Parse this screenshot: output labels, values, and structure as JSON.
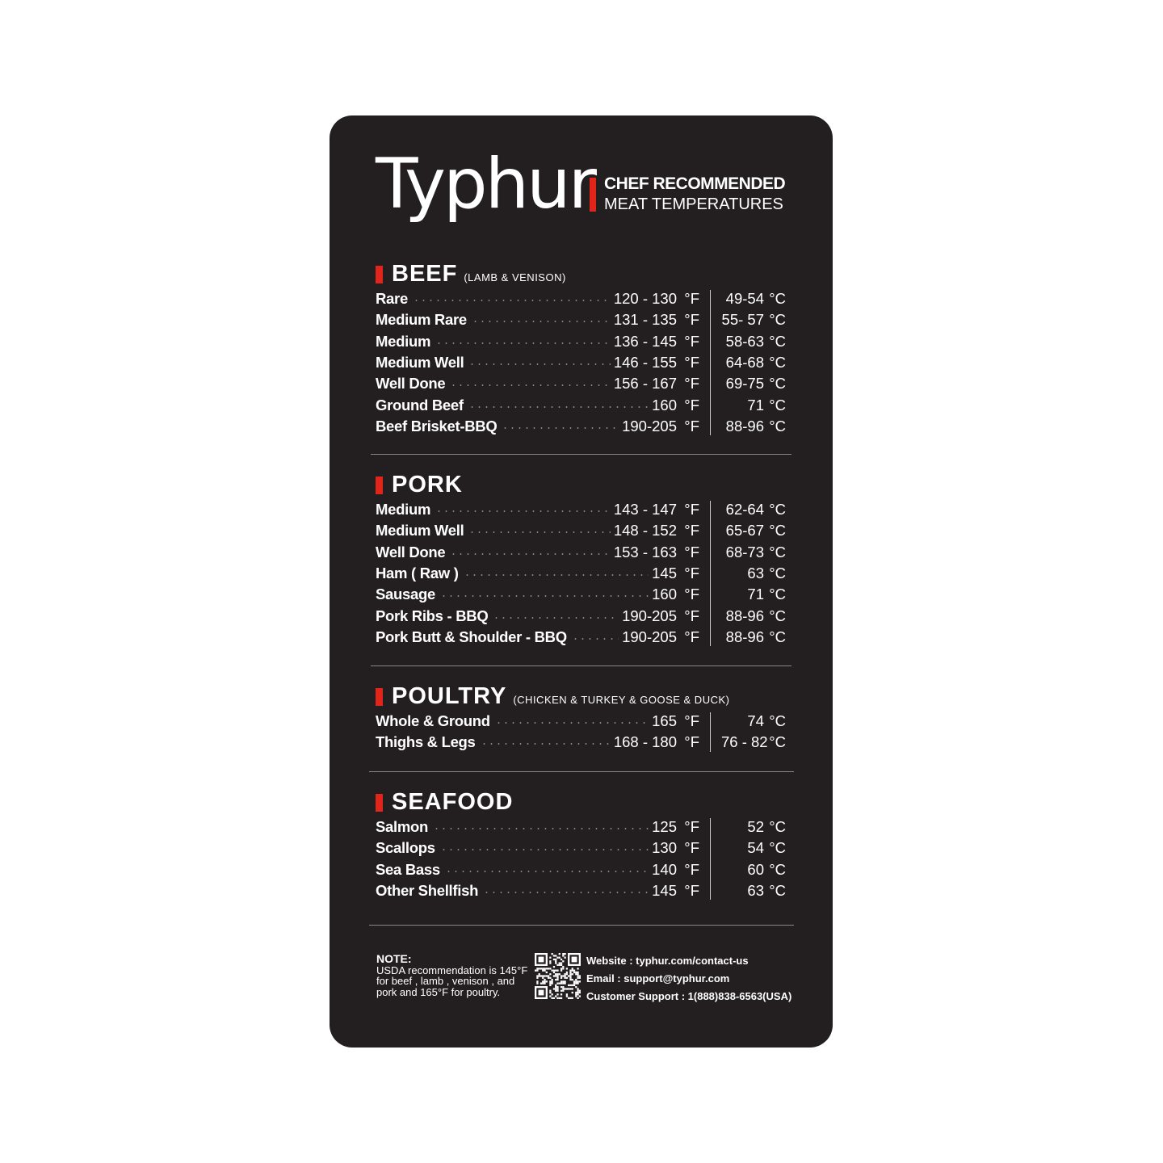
{
  "brand": {
    "logo": "Typhur",
    "tag_line1": "CHEF RECOMMENDED",
    "tag_line2": "MEAT TEMPERATURES",
    "accent": "#e1251b",
    "background": "#231f20"
  },
  "sections": [
    {
      "title": "BEEF",
      "subtitle": "(LAMB & VENISON)",
      "rows": [
        {
          "name": "Rare",
          "f": "120 - 130",
          "c": "49-54"
        },
        {
          "name": "Medium Rare",
          "f": "131 - 135",
          "c": "55- 57"
        },
        {
          "name": "Medium",
          "f": "136 - 145",
          "c": "58-63"
        },
        {
          "name": "Medium Well",
          "f": "146 - 155",
          "c": "64-68"
        },
        {
          "name": "Well Done",
          "f": "156 - 167",
          "c": "69-75"
        },
        {
          "name": "Ground Beef",
          "f": "160",
          "c": "71"
        },
        {
          "name": "Beef Brisket-BBQ",
          "f": "190-205",
          "c": "88-96"
        }
      ]
    },
    {
      "title": "PORK",
      "subtitle": "",
      "rows": [
        {
          "name": "Medium",
          "f": "143 - 147",
          "c": "62-64"
        },
        {
          "name": "Medium Well",
          "f": "148 - 152",
          "c": "65-67"
        },
        {
          "name": "Well Done",
          "f": "153 - 163",
          "c": "68-73"
        },
        {
          "name": "Ham ( Raw )",
          "f": "145",
          "c": "63"
        },
        {
          "name": "Sausage",
          "f": "160",
          "c": "71"
        },
        {
          "name": "Pork Ribs - BBQ",
          "f": "190-205",
          "c": "88-96"
        },
        {
          "name": "Pork Butt & Shoulder - BBQ",
          "f": "190-205",
          "c": "88-96"
        }
      ]
    },
    {
      "title": "POULTRY",
      "subtitle": "(CHICKEN & TURKEY & GOOSE & DUCK)",
      "rows": [
        {
          "name": "Whole & Ground",
          "f": "165",
          "c": "74"
        },
        {
          "name": "Thighs & Legs",
          "f": "168 - 180",
          "c": "76 - 82"
        }
      ]
    },
    {
      "title": "SEAFOOD",
      "subtitle": "",
      "rows": [
        {
          "name": "Salmon",
          "f": "125",
          "c": "52"
        },
        {
          "name": "Scallops",
          "f": "130",
          "c": "54"
        },
        {
          "name": "Sea Bass",
          "f": "140",
          "c": "60"
        },
        {
          "name": "Other Shellfish",
          "f": "145",
          "c": "63"
        }
      ]
    }
  ],
  "units": {
    "f": "°F",
    "c": "°C"
  },
  "footer": {
    "note_title": "NOTE:",
    "note_text": "USDA recommendation is 145°F for beef , lamb , venison , and pork and 165°F for poultry.",
    "website": "Website : typhur.com/contact-us",
    "email": "Email : support@typhur.com",
    "support": "Customer Support : 1(888)838-6563(USA)",
    "qr_icon": "qr-code-icon"
  }
}
